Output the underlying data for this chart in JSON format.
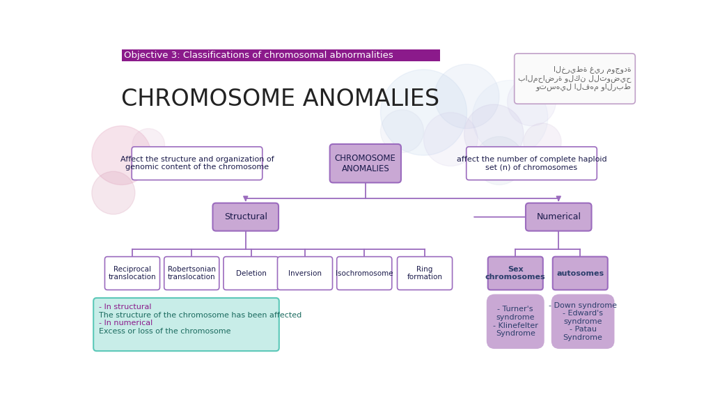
{
  "title_bar_text": "Objective 3: Classifications of chromosomal abnormalities",
  "title_bar_color": "#8B1A8B",
  "title_bar_text_color": "#FFFFFF",
  "main_title": "CHROMOSOME ANOMALIES",
  "bg_color": "#FFFFFF",
  "arabic_text": "الخريطة غير موجودة\nبالمحاضرة ولكن للتوضيح\nوتسهيل الفهم والربط",
  "purple_box_color": "#C9A8D4",
  "purple_box_border": "#9B6BBE",
  "white_box_color": "#FFFFFF",
  "white_box_border": "#9B6BBE",
  "teal_box_color": "#C8EDE8",
  "teal_box_border": "#5BC8B8",
  "dark_text": "#2C3E6B",
  "line_color": "#9B6BBE",
  "note_text_color_purple": "#8B1A8B",
  "note_text_color_teal_h": "#6B3A8B",
  "note_text_color_teal_b": "#1a6a5e"
}
